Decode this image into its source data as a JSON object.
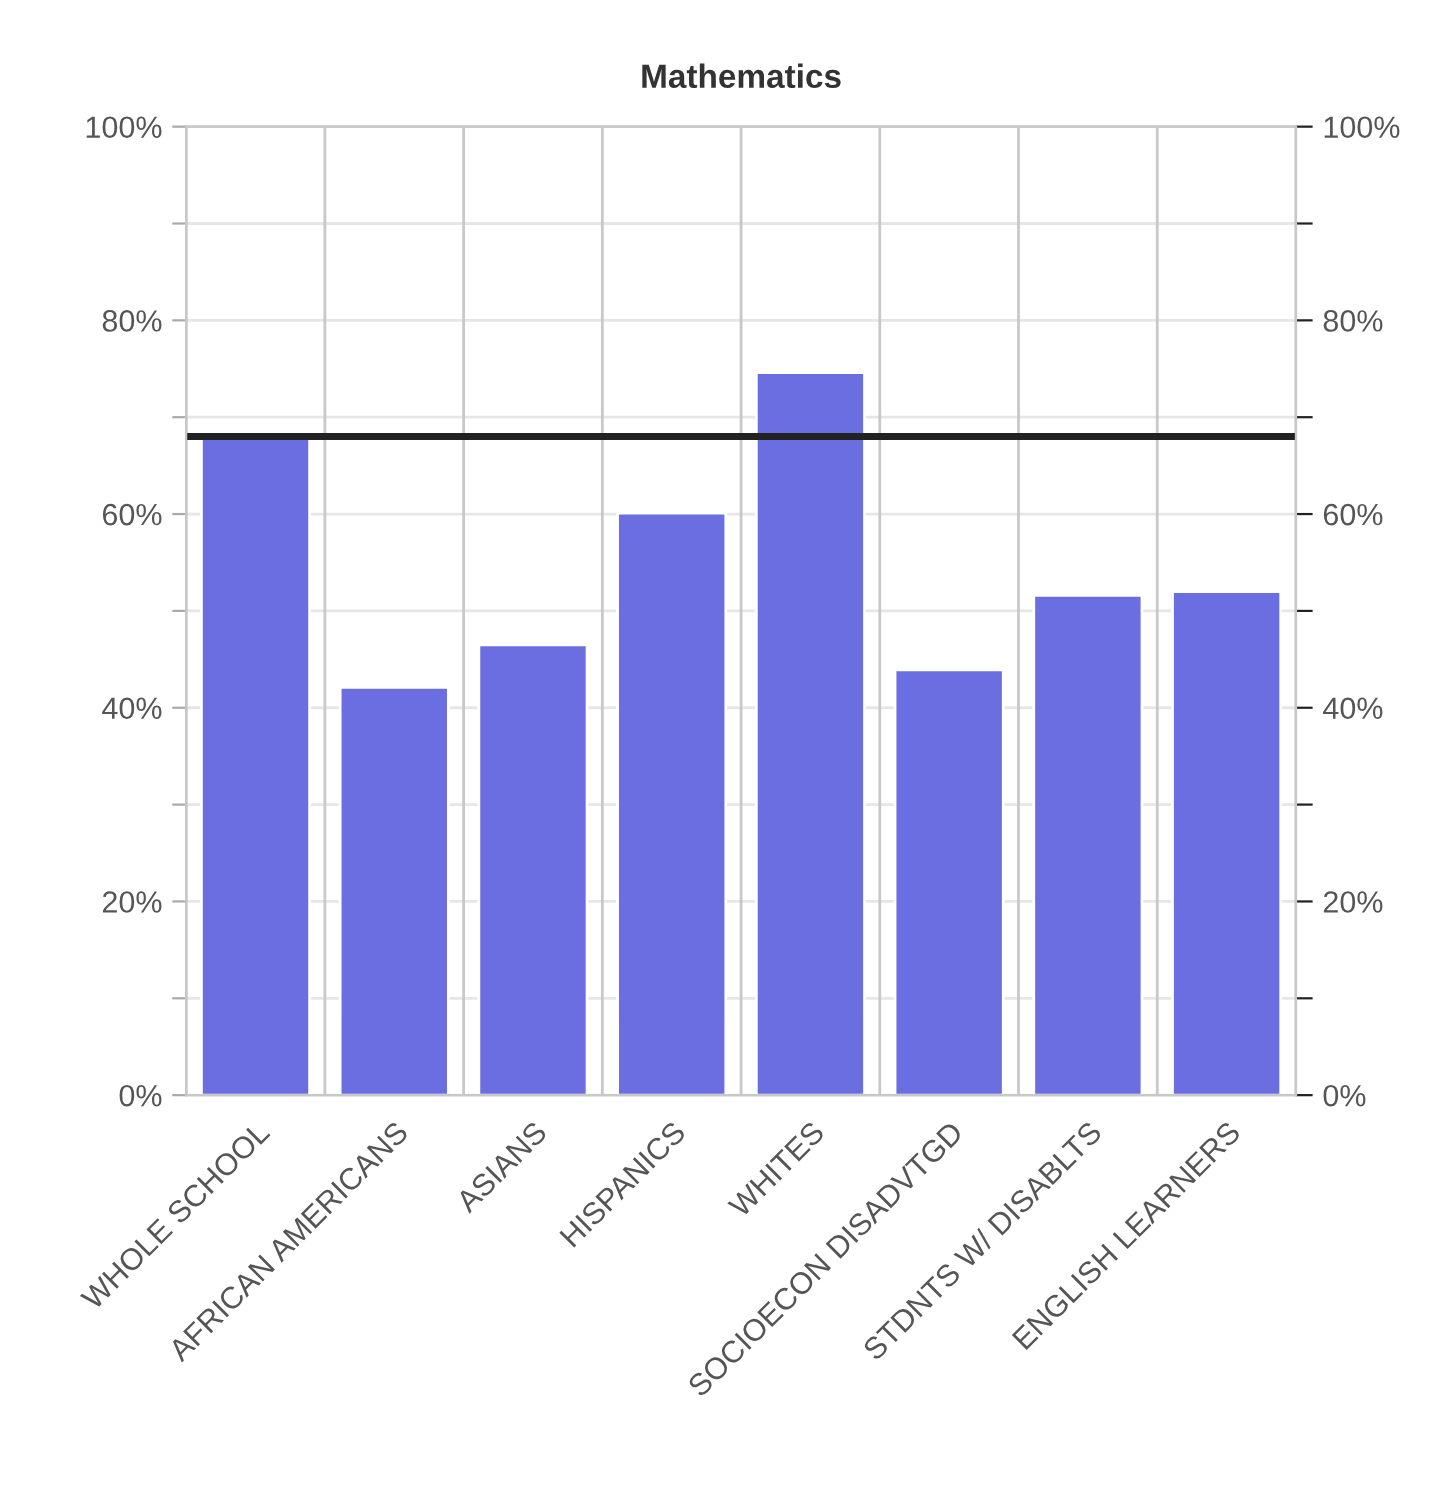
{
  "chart_data": {
    "type": "bar",
    "title": "Mathematics",
    "categories": [
      "WHOLE SCHOOL",
      "AFRICAN AMERICANS",
      "ASIANS",
      "HISPANICS",
      "WHITES",
      "SOCIOECON DISADVTGD",
      "STDNTS W/ DISABLTS",
      "ENGLISH LEARNERS"
    ],
    "values": [
      68,
      42.1,
      46.5,
      60.1,
      74.6,
      43.9,
      51.6,
      52.0
    ],
    "color": "#6a6ee0",
    "ylim": [
      0,
      100
    ],
    "yticks": [
      {
        "value": 0,
        "label": "0%"
      },
      {
        "value": 10,
        "label": null
      },
      {
        "value": 20,
        "label": "20%"
      },
      {
        "value": 30,
        "label": null
      },
      {
        "value": 40,
        "label": "40%"
      },
      {
        "value": 50,
        "label": null
      },
      {
        "value": 60,
        "label": "60%"
      },
      {
        "value": 70,
        "label": null
      },
      {
        "value": 80,
        "label": "80%"
      },
      {
        "value": 90,
        "label": null
      },
      {
        "value": 100,
        "label": "100%"
      }
    ],
    "y2lim": [
      0,
      100
    ],
    "y2ticks": [
      {
        "value": 0,
        "label": "0%"
      },
      {
        "value": 10,
        "label": null
      },
      {
        "value": 20,
        "label": "20%"
      },
      {
        "value": 30,
        "label": null
      },
      {
        "value": 40,
        "label": "40%"
      },
      {
        "value": 50,
        "label": null
      },
      {
        "value": 60,
        "label": "60%"
      },
      {
        "value": 70,
        "label": null
      },
      {
        "value": 80,
        "label": "80%"
      },
      {
        "value": 90,
        "label": null
      },
      {
        "value": 100,
        "label": "100%"
      }
    ],
    "ref_lines": [
      {
        "axis": "y",
        "value": 68,
        "color": "#222222",
        "line_style": "solid"
      }
    ],
    "grid": true
  }
}
